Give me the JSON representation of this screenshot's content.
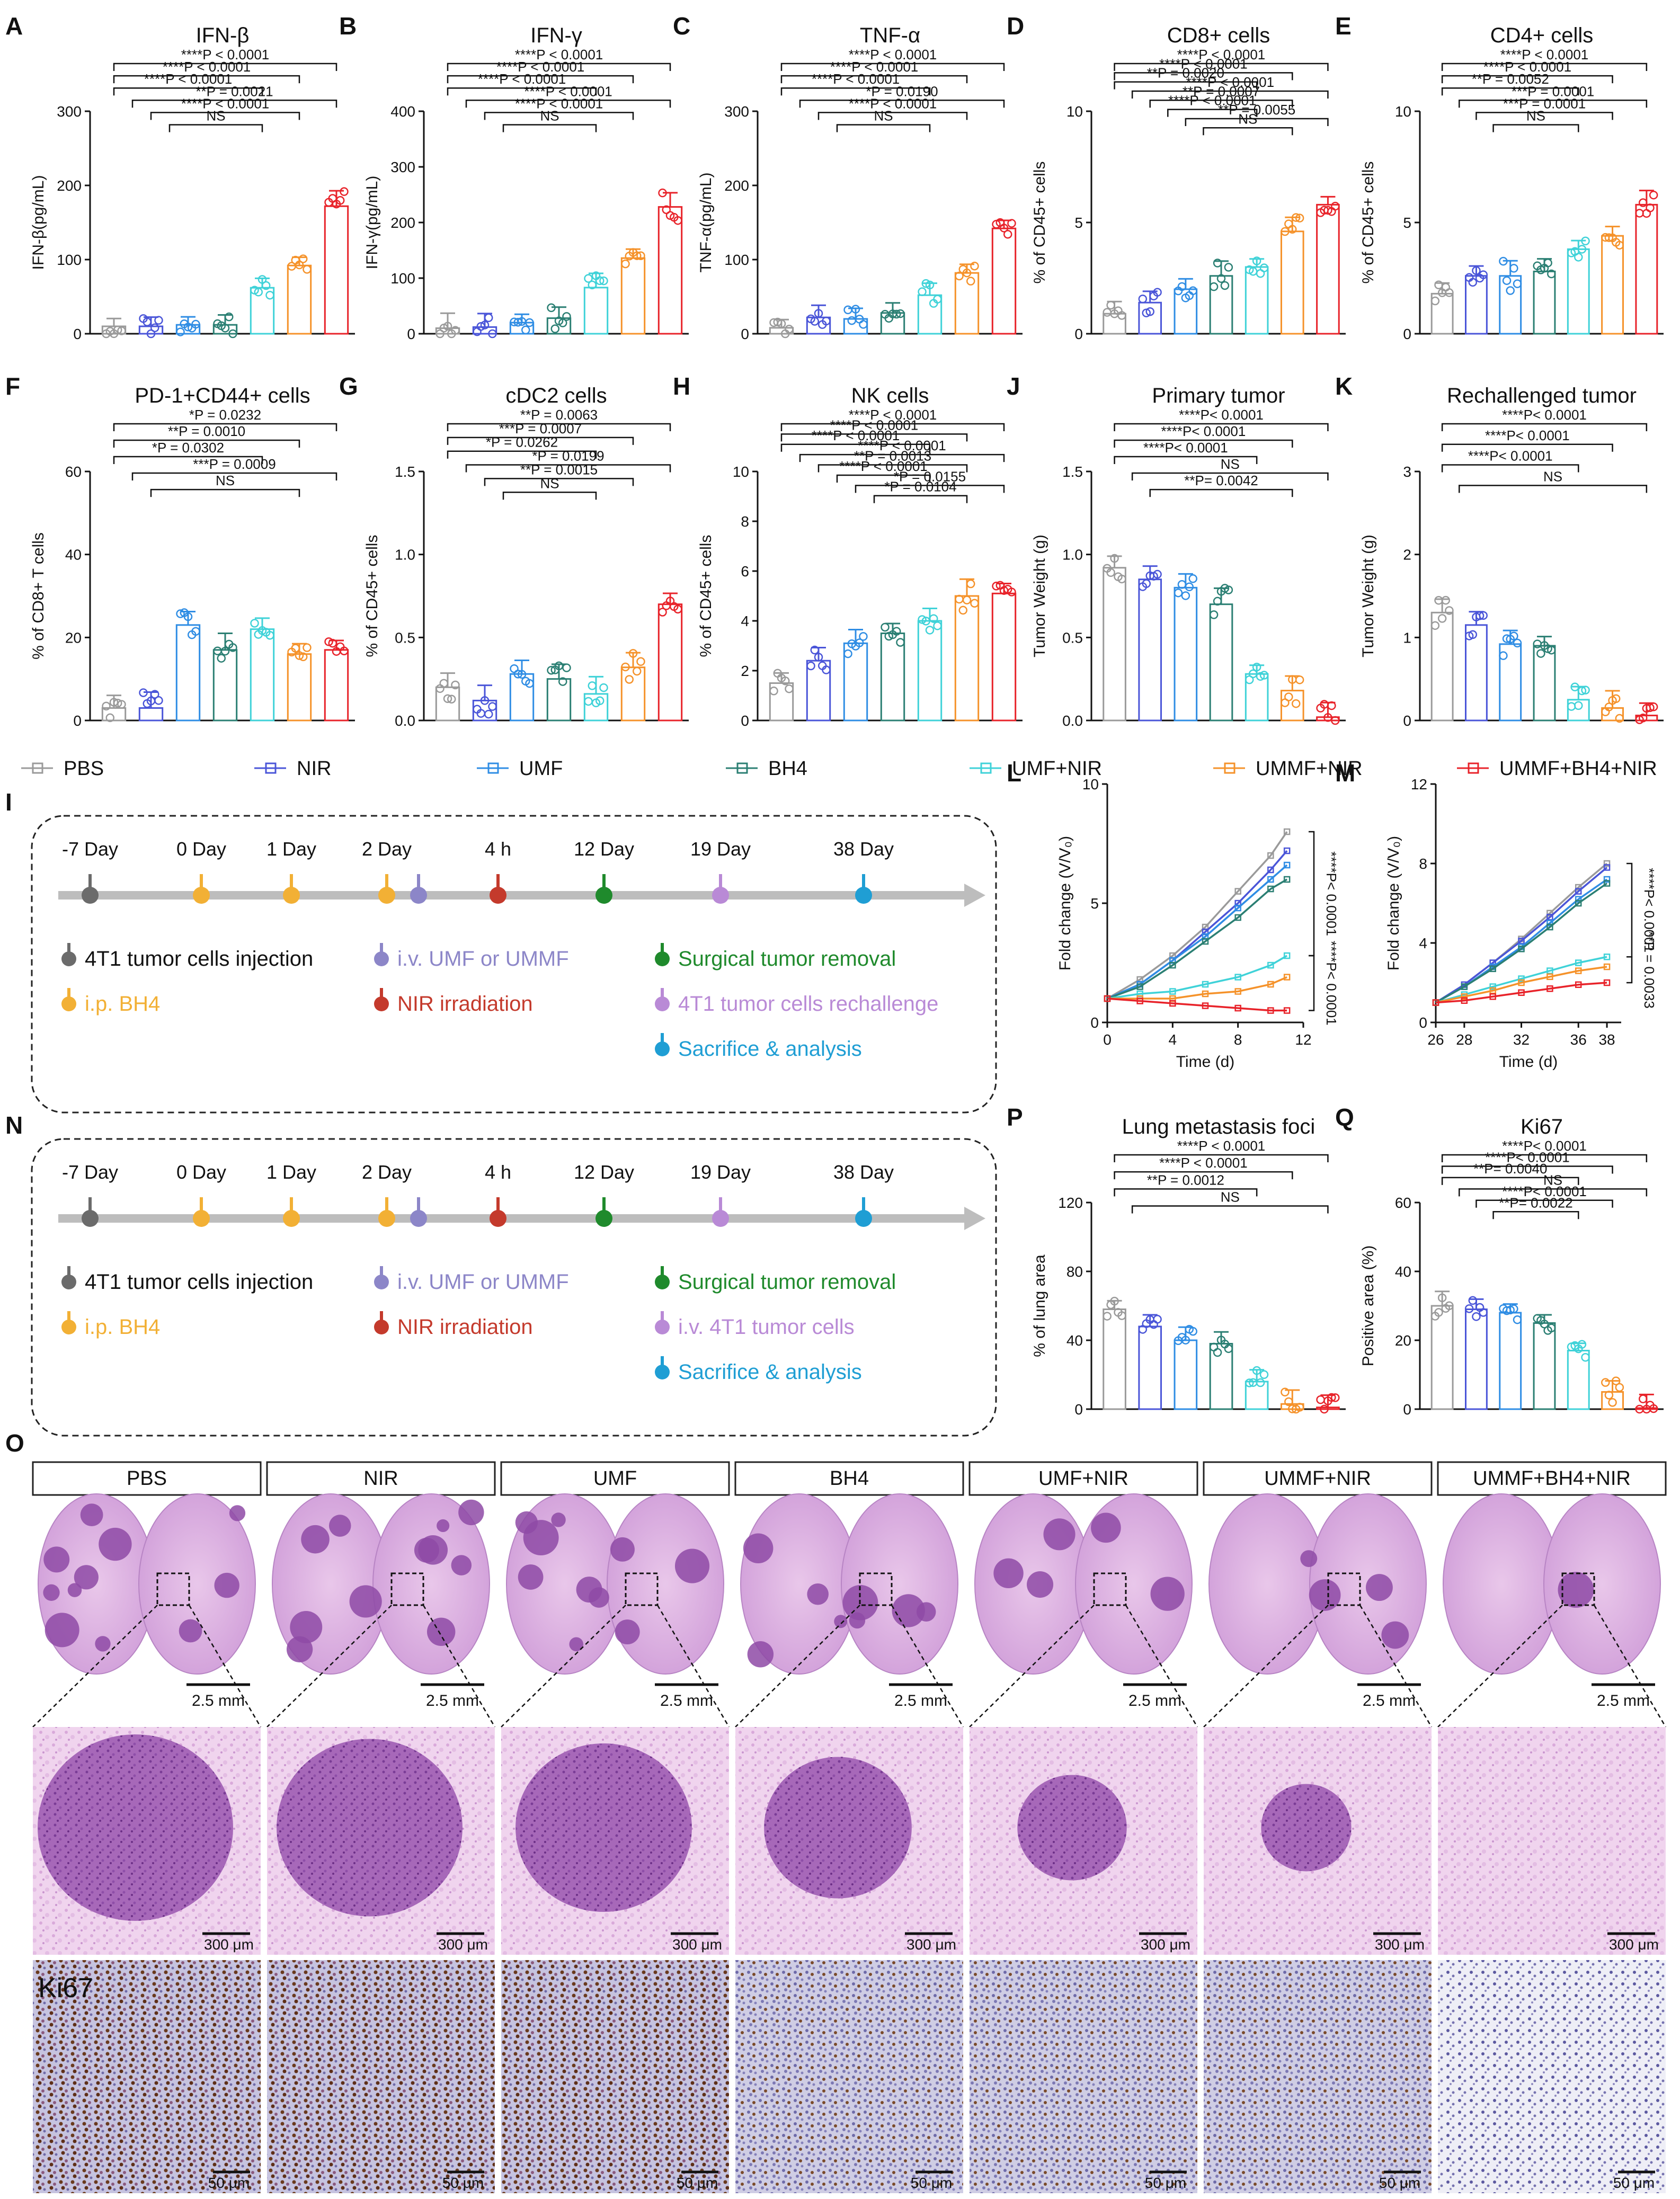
{
  "colors": {
    "PBS": "#9a9a9a",
    "NIR": "#4a55d8",
    "UMF": "#2f8de4",
    "BH4": "#2b7f73",
    "UMF+NIR": "#3fd2d8",
    "UMMF+NIR": "#f5922a",
    "UMMF+BH4+NIR": "#e8232a",
    "timeline_gray": "#6b6b6b",
    "timeline_orange": "#f2b035",
    "timeline_purple": "#8c86c8",
    "timeline_red": "#c43a2c",
    "timeline_green": "#1f8a2c",
    "timeline_violet": "#b98ad6",
    "timeline_blue": "#1f9ed4"
  },
  "groups": [
    "PBS",
    "NIR",
    "UMF",
    "BH4",
    "UMF+NIR",
    "UMMF+NIR",
    "UMMF+BH4+NIR"
  ],
  "legend": [
    "PBS",
    "NIR",
    "UMF",
    "BH4",
    "UMF+NIR",
    "UMMF+NIR",
    "UMMF+BH4+NIR"
  ],
  "chart_data": [
    {
      "id": "A",
      "letter": "A",
      "type": "bar",
      "title": "IFN-β",
      "ylabel": "IFN-β(pg/mL)",
      "ylim": [
        0,
        300
      ],
      "yticks": [
        "0",
        "100",
        "200",
        "300"
      ],
      "values": [
        10,
        10,
        12,
        12,
        62,
        92,
        172
      ],
      "points": 7,
      "brackets": [
        "****P < 0.0001",
        "****P < 0.0001",
        "****P < 0.0001",
        "**P = 0.0021",
        "****P < 0.0001",
        "NS"
      ]
    },
    {
      "id": "B",
      "letter": "B",
      "type": "bar",
      "title": "IFN-γ",
      "ylabel": "IFN-γ(pg/mL)",
      "ylim": [
        0,
        400
      ],
      "yticks": [
        "0",
        "100",
        "200",
        "300",
        "400"
      ],
      "values": [
        10,
        12,
        20,
        28,
        83,
        136,
        228
      ],
      "points": 7,
      "brackets": [
        "****P < 0.0001",
        "****P < 0.0001",
        "****P < 0.0001",
        "****P < 0.0001",
        "****P < 0.0001",
        "NS"
      ]
    },
    {
      "id": "C",
      "letter": "C",
      "type": "bar",
      "title": "TNF-α",
      "ylabel": "TNF-α(pg/mL)",
      "ylim": [
        0,
        300
      ],
      "yticks": [
        "0",
        "100",
        "200",
        "300"
      ],
      "values": [
        8,
        22,
        20,
        28,
        52,
        82,
        142
      ],
      "points": 7,
      "brackets": [
        "****P < 0.0001",
        "****P < 0.0001",
        "****P < 0.0001",
        "*P = 0.0190",
        "****P < 0.0001",
        "NS"
      ]
    },
    {
      "id": "D",
      "letter": "D",
      "type": "bar",
      "title": "CD8+ cells",
      "ylabel": "% of CD45+ cells",
      "ylim": [
        0,
        10
      ],
      "yticks": [
        "0",
        "5",
        "10"
      ],
      "values": [
        0.9,
        1.4,
        2.0,
        2.6,
        3.0,
        4.6,
        5.8
      ],
      "points": 7,
      "brackets": [
        "****P < 0.0001",
        "****P < 0.0001",
        "**P = 0.0020",
        "****P < 0.0001",
        "**P = 0.0007",
        "****P < 0.0001",
        "**P = 0.0055",
        "NS"
      ]
    },
    {
      "id": "E",
      "letter": "E",
      "type": "bar",
      "title": "CD4+ cells",
      "ylabel": "% of CD45+ cells",
      "ylim": [
        0,
        10
      ],
      "yticks": [
        "0",
        "5",
        "10"
      ],
      "values": [
        1.8,
        2.6,
        2.6,
        2.8,
        3.8,
        4.4,
        5.8
      ],
      "points": 7,
      "brackets": [
        "****P < 0.0001",
        "****P < 0.0001",
        "**P = 0.0052",
        "***P = 0.0001",
        "***P = 0.0001",
        "NS"
      ]
    },
    {
      "id": "F",
      "letter": "F",
      "type": "bar",
      "title": "PD-1+CD44+ cells",
      "ylabel": "% of CD8+ T cells",
      "ylim": [
        0,
        60
      ],
      "yticks": [
        "0",
        "20",
        "40",
        "60"
      ],
      "values": [
        3,
        3,
        23,
        17,
        22,
        16,
        17
      ],
      "points": 7,
      "brackets": [
        "*P = 0.0232",
        "**P = 0.0010",
        "*P = 0.0302",
        "***P = 0.0009",
        "NS"
      ]
    },
    {
      "id": "G",
      "letter": "G",
      "type": "bar",
      "title": "cDC2 cells",
      "ylabel": "% of CD45+ cells",
      "ylim": [
        0,
        1.5
      ],
      "yticks": [
        "0.0",
        "0.5",
        "1.0",
        "1.5"
      ],
      "values": [
        0.2,
        0.12,
        0.28,
        0.25,
        0.16,
        0.32,
        0.7
      ],
      "points": 7,
      "brackets": [
        "**P = 0.0063",
        "***P = 0.0007",
        "*P = 0.0262",
        "*P = 0.0199",
        "**P = 0.0015",
        "NS"
      ]
    },
    {
      "id": "H",
      "letter": "H",
      "type": "bar",
      "title": "NK cells",
      "ylabel": "% of CD45+ cells",
      "ylim": [
        0,
        10
      ],
      "yticks": [
        "0",
        "2",
        "4",
        "6",
        "8",
        "10"
      ],
      "values": [
        1.5,
        2.4,
        3.1,
        3.5,
        4.0,
        5.0,
        5.1
      ],
      "points": 7,
      "brackets": [
        "****P < 0.0001",
        "****P < 0.0001",
        "****P < 0.0001",
        "****P < 0.0001",
        "**P = 0.0013",
        "****P < 0.0001",
        "*P = 0.0155",
        "*P = 0.0104"
      ]
    },
    {
      "id": "J",
      "letter": "J",
      "type": "bar",
      "title": "Primary tumor",
      "ylabel": "Tumor Weight (g)",
      "ylim": [
        0,
        1.5
      ],
      "yticks": [
        "0.0",
        "0.5",
        "1.0",
        "1.5"
      ],
      "values": [
        0.92,
        0.85,
        0.8,
        0.7,
        0.28,
        0.18,
        0.02
      ],
      "points": 7,
      "brackets": [
        "****P< 0.0001",
        "****P< 0.0001",
        "****P< 0.0001",
        "NS",
        "**P= 0.0042"
      ]
    },
    {
      "id": "K",
      "letter": "K",
      "type": "bar",
      "title": "Rechallenged tumor",
      "ylabel": "Tumor Weight (g)",
      "ylim": [
        0,
        3
      ],
      "yticks": [
        "0",
        "1",
        "2",
        "3"
      ],
      "values": [
        1.3,
        1.15,
        0.92,
        0.9,
        0.25,
        0.15,
        0.06
      ],
      "points": 7,
      "brackets": [
        "****P< 0.0001",
        "****P< 0.0001",
        "****P< 0.0001",
        "NS"
      ]
    },
    {
      "id": "L",
      "letter": "L",
      "type": "line",
      "title": "",
      "xlabel": "Time (d)",
      "ylabel": "Fold change  (V/V₀)",
      "xlim": [
        0,
        12
      ],
      "ylim": [
        0,
        10
      ],
      "xticks": [
        "0",
        "4",
        "8",
        "12"
      ],
      "yticks": [
        "0",
        "5",
        "10"
      ],
      "x": [
        0,
        2,
        4,
        6,
        8,
        10,
        11
      ],
      "series": [
        {
          "name": "PBS",
          "values": [
            1,
            1.8,
            2.8,
            4.0,
            5.5,
            7.0,
            8.0
          ]
        },
        {
          "name": "NIR",
          "values": [
            1,
            1.6,
            2.6,
            3.8,
            5.0,
            6.4,
            7.2
          ]
        },
        {
          "name": "UMF",
          "values": [
            1,
            1.6,
            2.6,
            3.6,
            4.8,
            6.0,
            6.6
          ]
        },
        {
          "name": "BH4",
          "values": [
            1,
            1.5,
            2.4,
            3.4,
            4.4,
            5.6,
            6.0
          ]
        },
        {
          "name": "UMF+NIR",
          "values": [
            1,
            1.2,
            1.3,
            1.6,
            1.9,
            2.4,
            2.8
          ]
        },
        {
          "name": "UMMF+NIR",
          "values": [
            1,
            1.0,
            1.0,
            1.2,
            1.3,
            1.6,
            1.9
          ]
        },
        {
          "name": "UMMF+BH4+NIR",
          "values": [
            1,
            0.9,
            0.8,
            0.7,
            0.6,
            0.5,
            0.5
          ]
        }
      ],
      "annotations": [
        "****P< 0.0001",
        "****P< 0.0001"
      ]
    },
    {
      "id": "M",
      "letter": "M",
      "type": "line",
      "title": "",
      "xlabel": "Time (d)",
      "ylabel": "Fold change (V/V₀)",
      "xlim": [
        26,
        39
      ],
      "ylim": [
        0,
        12
      ],
      "xticks": [
        "26",
        "28",
        "32",
        "36",
        "38"
      ],
      "yticks": [
        "0",
        "4",
        "8",
        "12"
      ],
      "x": [
        26,
        28,
        30,
        32,
        34,
        36,
        38
      ],
      "series": [
        {
          "name": "PBS",
          "values": [
            1,
            1.9,
            3.0,
            4.2,
            5.5,
            6.8,
            8.0
          ]
        },
        {
          "name": "NIR",
          "values": [
            1,
            1.9,
            3.0,
            4.1,
            5.3,
            6.6,
            7.8
          ]
        },
        {
          "name": "UMF",
          "values": [
            1,
            1.8,
            2.8,
            3.8,
            5.0,
            6.2,
            7.2
          ]
        },
        {
          "name": "BH4",
          "values": [
            1,
            1.8,
            2.7,
            3.7,
            4.8,
            6.0,
            7.0
          ]
        },
        {
          "name": "UMF+NIR",
          "values": [
            1,
            1.4,
            1.8,
            2.2,
            2.6,
            3.0,
            3.3
          ]
        },
        {
          "name": "UMMF+NIR",
          "values": [
            1,
            1.3,
            1.6,
            2.0,
            2.3,
            2.6,
            2.8
          ]
        },
        {
          "name": "UMMF+BH4+NIR",
          "values": [
            1,
            1.1,
            1.3,
            1.5,
            1.7,
            1.9,
            2.0
          ]
        }
      ],
      "annotations": [
        "****P< 0.0001",
        "**P = 0.0033"
      ]
    },
    {
      "id": "P",
      "letter": "P",
      "type": "bar",
      "title": "Lung metastasis foci",
      "ylabel": "% of lung area",
      "ylim": [
        0,
        120
      ],
      "yticks": [
        "0",
        "40",
        "80",
        "120"
      ],
      "values": [
        58,
        48,
        40,
        38,
        16,
        3,
        1
      ],
      "points": 7,
      "brackets": [
        "****P < 0.0001",
        "****P < 0.0001",
        "**P = 0.0012",
        "NS"
      ]
    },
    {
      "id": "Q",
      "letter": "Q",
      "type": "bar",
      "title": "Ki67",
      "ylabel": "Positive area (%)",
      "ylim": [
        0,
        60
      ],
      "yticks": [
        "0",
        "20",
        "40",
        "60"
      ],
      "values": [
        30,
        29,
        28,
        25,
        17,
        5,
        0.3
      ],
      "points": 7,
      "brackets": [
        "****P< 0.0001",
        "****P< 0.0001",
        "**P= 0.0040",
        "NS",
        "****P< 0.0001",
        "**P= 0.0022"
      ]
    }
  ],
  "timeline_I": {
    "letter": "I",
    "days": [
      "-7 Day",
      "0 Day",
      "1 Day",
      "2 Day",
      "4 h",
      "12 Day",
      "19 Day",
      "38 Day"
    ],
    "legend": [
      "4T1 tumor cells injection",
      "i.v. UMF or UMMF",
      "Surgical tumor removal",
      "i.p. BH4",
      "NIR irradiation",
      "4T1 tumor cells rechallenge",
      "Sacrifice & analysis"
    ]
  },
  "timeline_N": {
    "letter": "N",
    "days": [
      "-7 Day",
      "0 Day",
      "1 Day",
      "2 Day",
      "4 h",
      "12 Day",
      "19 Day",
      "38 Day"
    ],
    "legend": [
      "4T1 tumor cells injection",
      "i.v. UMF or UMMF",
      "Surgical tumor removal",
      "i.p. BH4",
      "NIR irradiation",
      "i.v. 4T1 tumor cells",
      "Sacrifice & analysis"
    ]
  },
  "histology": {
    "letter": "O",
    "headers": [
      "PBS",
      "NIR",
      "UMF",
      "BH4",
      "UMF+NIR",
      "UMMF+NIR",
      "UMMF+BH4+NIR"
    ],
    "scale_top": "2.5 mm",
    "scale_mid": "300 μm",
    "scale_bottom": "50 μm",
    "stain_label": "Ki67"
  }
}
